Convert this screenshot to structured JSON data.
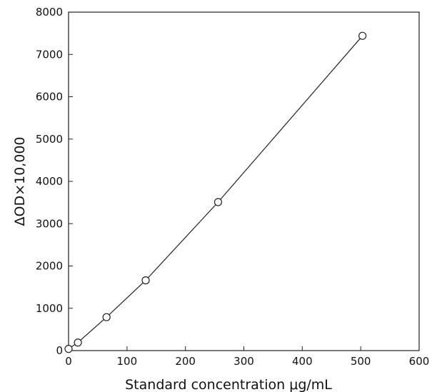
{
  "chart_data": {
    "type": "scatter",
    "xlabel": "Standard concentration μg/mL",
    "ylabel": "ΔOD×10,000",
    "xlim": [
      0,
      600
    ],
    "ylim": [
      0,
      8000
    ],
    "x_ticks": [
      0,
      100,
      200,
      300,
      400,
      500,
      600
    ],
    "y_ticks": [
      0,
      1000,
      2000,
      3000,
      4000,
      5000,
      6000,
      7000,
      8000
    ],
    "grid": false,
    "series": [
      {
        "marker": "open-circle",
        "x": [
          0,
          16,
          65,
          132,
          256,
          503
        ],
        "y": [
          40,
          190,
          790,
          1660,
          3510,
          7440
        ],
        "fit_line": true
      }
    ]
  }
}
